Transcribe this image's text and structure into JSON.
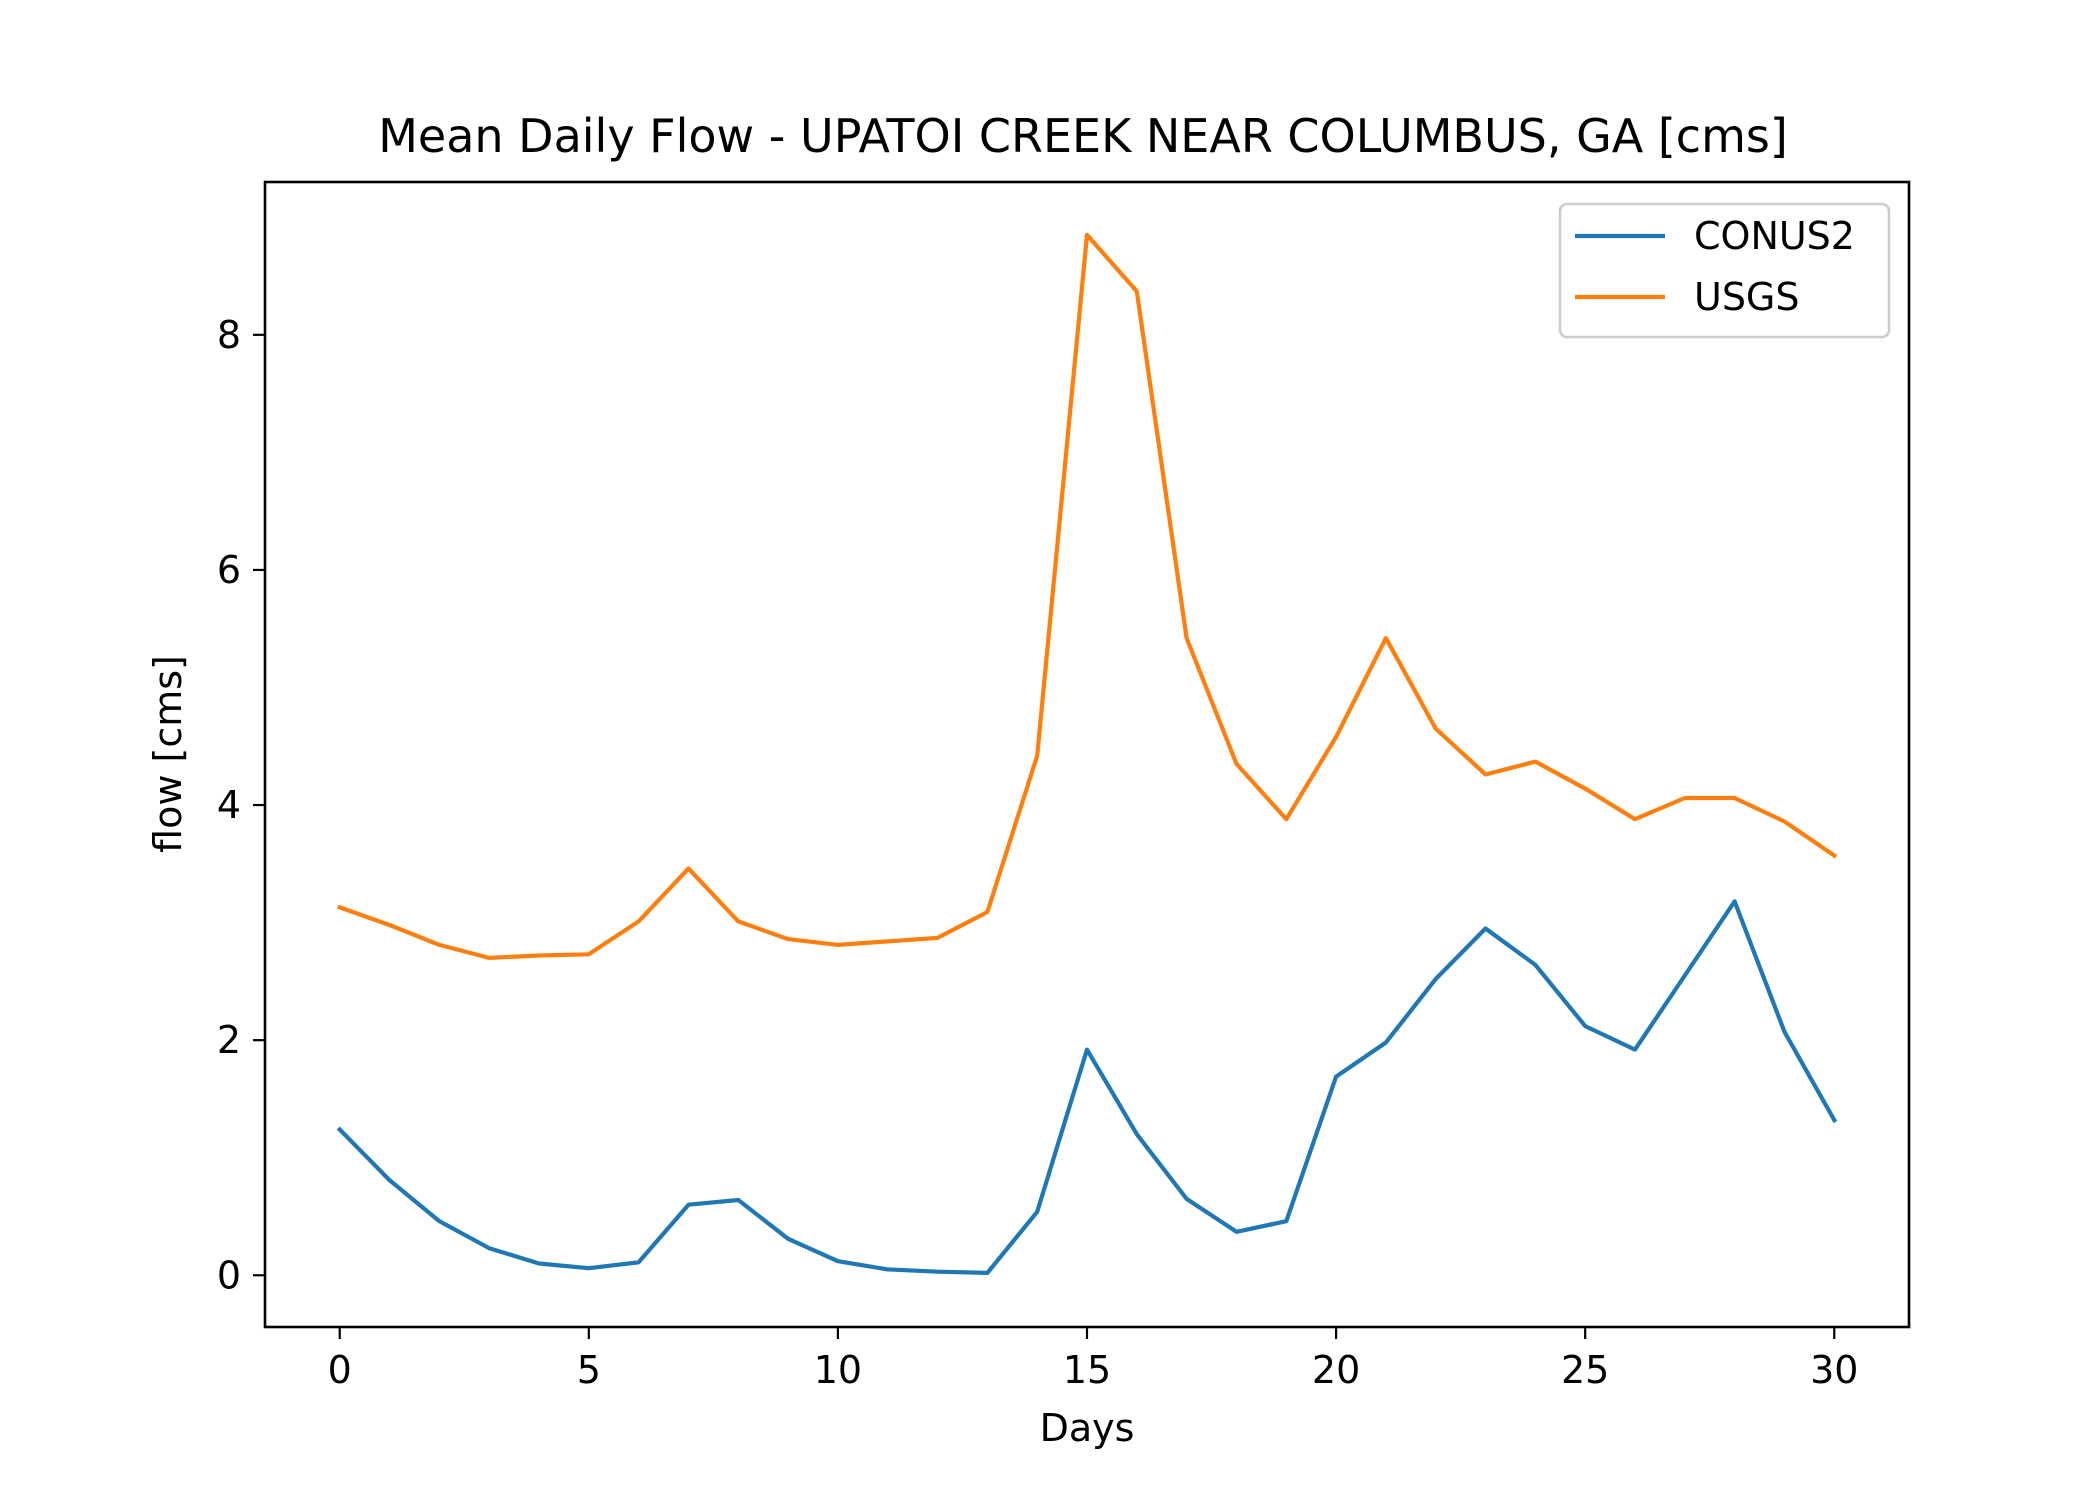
{
  "chart_data": {
    "type": "line",
    "title": "Mean Daily Flow - UPATOI CREEK NEAR COLUMBUS, GA [cms]",
    "xlabel": "Days",
    "ylabel": "flow [cms]",
    "xlim": [
      -1.5,
      31.5
    ],
    "ylim": [
      -0.44,
      9.3
    ],
    "xticks": [
      0,
      5,
      10,
      15,
      20,
      25,
      30
    ],
    "yticks": [
      0,
      2,
      4,
      6,
      8
    ],
    "grid": false,
    "legend_position": "top-right",
    "x": [
      0,
      1,
      2,
      3,
      4,
      5,
      6,
      7,
      8,
      9,
      10,
      11,
      12,
      13,
      14,
      15,
      16,
      17,
      18,
      19,
      20,
      21,
      22,
      23,
      24,
      25,
      26,
      27,
      28,
      29,
      30
    ],
    "series": [
      {
        "name": "CONUS2",
        "color": "#1f77b4",
        "values": [
          1.24,
          0.81,
          0.46,
          0.23,
          0.1,
          0.06,
          0.11,
          0.6,
          0.64,
          0.31,
          0.12,
          0.05,
          0.03,
          0.02,
          0.54,
          1.92,
          1.2,
          0.65,
          0.37,
          0.46,
          1.69,
          1.98,
          2.52,
          2.95,
          2.64,
          2.12,
          1.92,
          2.55,
          3.18,
          2.07,
          1.32
        ]
      },
      {
        "name": "USGS",
        "color": "#ff7f0e",
        "values": [
          3.13,
          2.98,
          2.81,
          2.7,
          2.72,
          2.73,
          3.01,
          3.46,
          3.01,
          2.86,
          2.81,
          2.84,
          2.87,
          3.09,
          4.42,
          8.85,
          8.37,
          5.42,
          4.35,
          3.88,
          4.58,
          5.42,
          4.65,
          4.26,
          4.37,
          4.14,
          3.88,
          4.06,
          4.06,
          3.86,
          3.57
        ]
      }
    ]
  }
}
